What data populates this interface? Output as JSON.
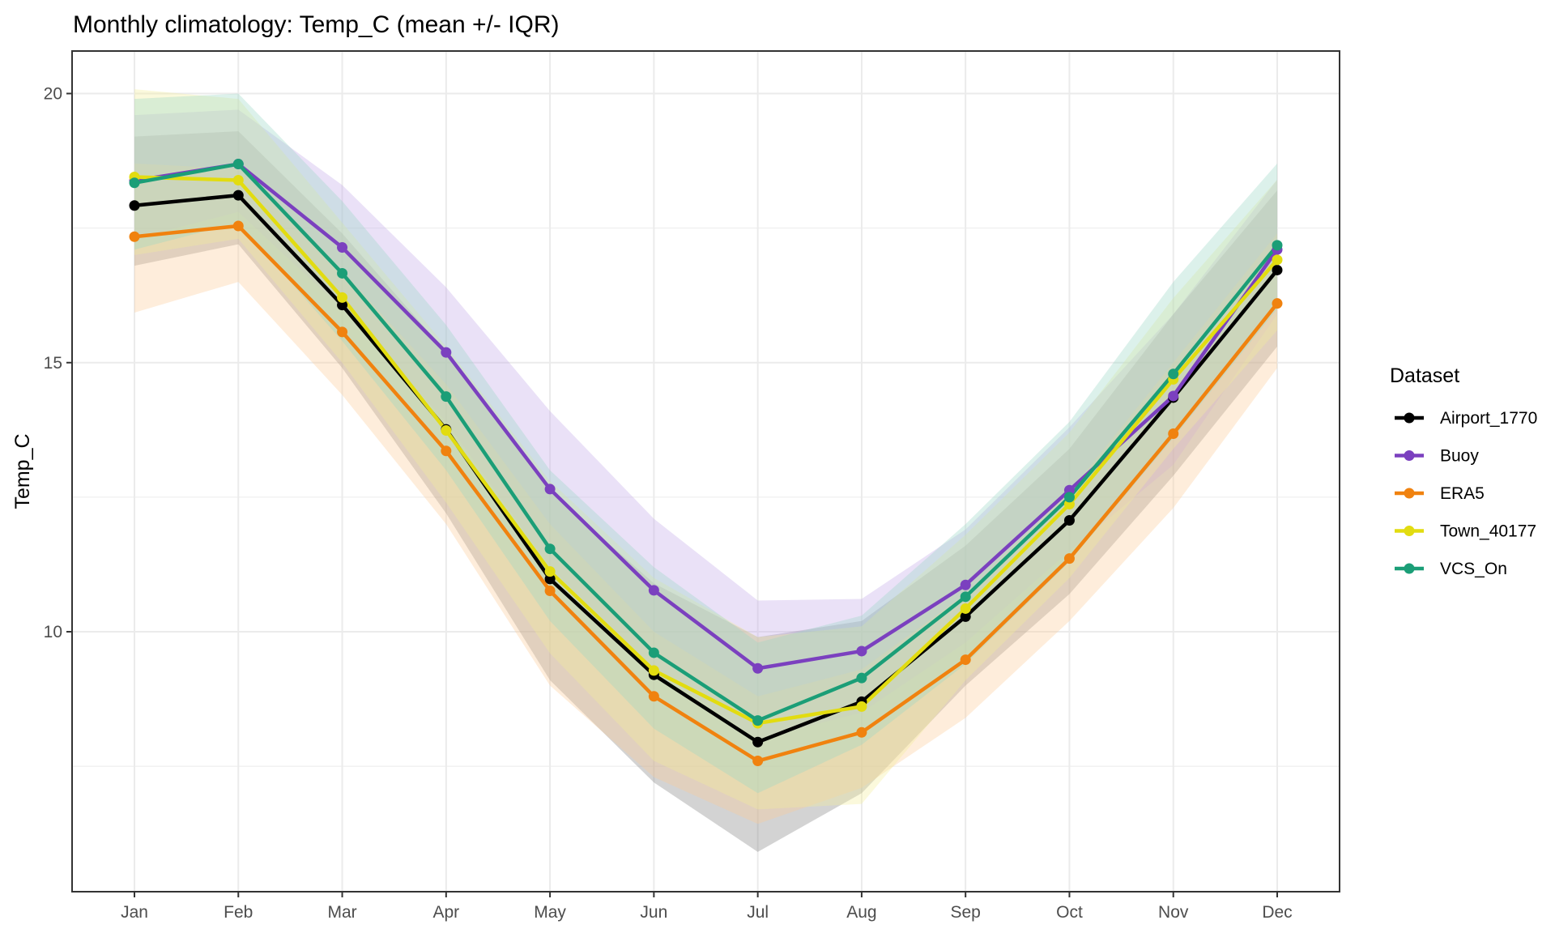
{
  "chart_data": {
    "type": "line",
    "title": "Monthly climatology: Temp_C (mean +/- IQR)",
    "xlabel": "",
    "ylabel": "Temp_C",
    "categories": [
      "Jan",
      "Feb",
      "Mar",
      "Apr",
      "May",
      "Jun",
      "Jul",
      "Aug",
      "Sep",
      "Oct",
      "Nov",
      "Dec"
    ],
    "ylim": [
      5.17,
      20.79
    ],
    "yticks": [
      10,
      15,
      20
    ],
    "grid": true,
    "legend": {
      "title": "Dataset",
      "position": "right"
    },
    "series": [
      {
        "name": "Airport_1770",
        "color": "#000000",
        "band_color": "#808080",
        "values": [
          17.92,
          18.11,
          16.07,
          13.76,
          10.98,
          9.2,
          7.95,
          8.7,
          10.28,
          12.07,
          14.35,
          16.72
        ],
        "lower": [
          16.8,
          17.2,
          14.9,
          12.2,
          9.1,
          7.2,
          5.91,
          7.0,
          9.0,
          10.7,
          12.9,
          15.3
        ],
        "upper": [
          19.2,
          19.3,
          17.4,
          15.2,
          12.6,
          10.9,
          9.9,
          10.2,
          11.6,
          13.4,
          15.9,
          18.2
        ]
      },
      {
        "name": "Buoy",
        "color": "#7B40BF",
        "band_color": "#C3A8E8",
        "values": [
          18.38,
          18.69,
          17.14,
          15.19,
          12.65,
          10.77,
          9.32,
          9.64,
          10.87,
          12.63,
          14.38,
          17.1
        ],
        "lower": [
          17.3,
          17.8,
          16.0,
          13.9,
          11.2,
          9.3,
          8.0,
          8.5,
          9.8,
          11.5,
          13.1,
          15.9
        ],
        "upper": [
          19.6,
          19.7,
          18.3,
          16.4,
          14.1,
          12.1,
          10.58,
          10.61,
          11.9,
          13.8,
          15.9,
          18.4
        ]
      },
      {
        "name": "ERA5",
        "color": "#F0820F",
        "band_color": "#FBCB98",
        "values": [
          17.34,
          17.54,
          15.57,
          13.36,
          10.76,
          8.8,
          7.6,
          8.13,
          9.48,
          11.36,
          13.68,
          16.1
        ],
        "lower": [
          15.93,
          16.5,
          14.4,
          12.0,
          9.0,
          7.3,
          6.43,
          7.1,
          8.4,
          10.2,
          12.3,
          14.9
        ],
        "upper": [
          18.7,
          18.6,
          16.7,
          14.6,
          12.0,
          10.0,
          8.8,
          9.3,
          10.7,
          12.6,
          15.0,
          17.4
        ]
      },
      {
        "name": "Town_40177",
        "color": "#E2DC10",
        "band_color": "#F3EF9A",
        "values": [
          18.45,
          18.39,
          16.21,
          13.74,
          11.12,
          9.28,
          8.3,
          8.61,
          10.43,
          12.37,
          14.69,
          16.91
        ],
        "lower": [
          17.0,
          17.3,
          15.0,
          12.4,
          9.6,
          7.6,
          6.7,
          6.8,
          9.1,
          11.0,
          13.4,
          15.6
        ],
        "upper": [
          20.08,
          19.9,
          17.6,
          15.3,
          12.8,
          11.0,
          9.9,
          10.1,
          11.8,
          13.7,
          16.2,
          18.4
        ]
      },
      {
        "name": "VCS_On",
        "color": "#1B9E77",
        "band_color": "#9AD8C6",
        "values": [
          18.34,
          18.69,
          16.66,
          14.37,
          11.54,
          9.61,
          8.35,
          9.14,
          10.65,
          12.5,
          14.79,
          17.18
        ],
        "lower": [
          17.1,
          17.6,
          15.4,
          13.0,
          10.2,
          8.2,
          7.0,
          7.9,
          9.4,
          11.3,
          13.6,
          16.0
        ],
        "upper": [
          19.9,
          20.0,
          18.0,
          15.7,
          13.0,
          11.2,
          9.8,
          10.3,
          12.0,
          13.9,
          16.5,
          18.7
        ]
      }
    ]
  }
}
